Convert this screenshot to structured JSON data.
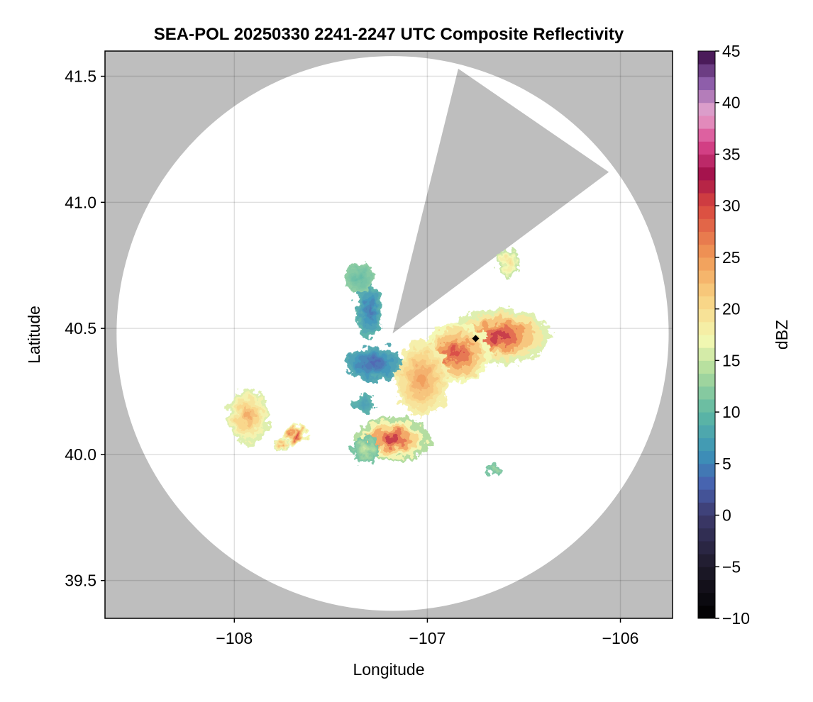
{
  "chart_data": {
    "type": "heatmap",
    "title": "SEA-POL 20250330 2241-2247 UTC Composite Reflectivity",
    "xlabel": "Longitude",
    "ylabel": "Latitude",
    "xlim": [
      -108.67,
      -105.73
    ],
    "ylim": [
      39.35,
      41.6
    ],
    "x_ticks": [
      -108,
      -107,
      -106
    ],
    "x_tick_labels": [
      "−108",
      "−107",
      "−106"
    ],
    "y_ticks": [
      39.5,
      40.0,
      40.5,
      41.0,
      41.5
    ],
    "y_tick_labels": [
      "39.5",
      "40.0",
      "40.5",
      "41.0",
      "41.5"
    ],
    "grid": true,
    "background_color": "#bebebe",
    "coverage_color": "#ffffff",
    "radar_site": {
      "lon": -107.18,
      "lat": 40.48
    },
    "coverage_radius_deg_lat": 1.1,
    "coverage_radius_deg_lon": 1.43,
    "blocked_sector": {
      "vertices": [
        [
          -107.18,
          40.48
        ],
        [
          -106.84,
          41.53
        ],
        [
          -106.06,
          41.12
        ]
      ]
    },
    "colorbar": {
      "label": "dBZ",
      "min": -10,
      "max": 45,
      "ticks": [
        -10,
        -5,
        0,
        5,
        10,
        15,
        20,
        25,
        30,
        35,
        40,
        45
      ],
      "tick_labels": [
        "−10",
        "−5",
        "0",
        "5",
        "10",
        "15",
        "20",
        "25",
        "30",
        "35",
        "40",
        "45"
      ],
      "colormap": "spectral-inverted",
      "stops": [
        {
          "v": -10,
          "c": "#000000"
        },
        {
          "v": -5,
          "c": "#1e1a2a"
        },
        {
          "v": 0,
          "c": "#3d3a6c"
        },
        {
          "v": 3,
          "c": "#4862b0"
        },
        {
          "v": 6,
          "c": "#3b93b8"
        },
        {
          "v": 10,
          "c": "#5fb9a3"
        },
        {
          "v": 14,
          "c": "#b0dc9c"
        },
        {
          "v": 17,
          "c": "#f3f8b2"
        },
        {
          "v": 21,
          "c": "#f9d384"
        },
        {
          "v": 25,
          "c": "#f19a57"
        },
        {
          "v": 30,
          "c": "#d9473f"
        },
        {
          "v": 33,
          "c": "#a3114a"
        },
        {
          "v": 36,
          "c": "#d9458c"
        },
        {
          "v": 39,
          "c": "#e6a6cf"
        },
        {
          "v": 42,
          "c": "#8a5ba8"
        },
        {
          "v": 45,
          "c": "#3a0a45"
        }
      ]
    },
    "echo_cells": [
      {
        "lon": -106.62,
        "lat": 40.47,
        "rx": 0.26,
        "ry": 0.11,
        "core_dbz": 31,
        "edge_dbz": 16
      },
      {
        "lon": -106.85,
        "lat": 40.4,
        "rx": 0.18,
        "ry": 0.12,
        "core_dbz": 30,
        "edge_dbz": 17
      },
      {
        "lon": -107.03,
        "lat": 40.3,
        "rx": 0.14,
        "ry": 0.15,
        "core_dbz": 25,
        "edge_dbz": 18
      },
      {
        "lon": -107.18,
        "lat": 40.06,
        "rx": 0.2,
        "ry": 0.09,
        "core_dbz": 31,
        "edge_dbz": 14
      },
      {
        "lon": -107.32,
        "lat": 40.02,
        "rx": 0.07,
        "ry": 0.05,
        "core_dbz": 15,
        "edge_dbz": 11
      },
      {
        "lon": -107.93,
        "lat": 40.15,
        "rx": 0.11,
        "ry": 0.11,
        "core_dbz": 24,
        "edge_dbz": 16
      },
      {
        "lon": -107.68,
        "lat": 40.08,
        "rx": 0.06,
        "ry": 0.04,
        "core_dbz": 30,
        "edge_dbz": 17
      },
      {
        "lon": -107.76,
        "lat": 40.04,
        "rx": 0.04,
        "ry": 0.03,
        "core_dbz": 24,
        "edge_dbz": 16
      },
      {
        "lon": -107.28,
        "lat": 40.36,
        "rx": 0.15,
        "ry": 0.07,
        "core_dbz": 3,
        "edge_dbz": 8
      },
      {
        "lon": -107.3,
        "lat": 40.57,
        "rx": 0.07,
        "ry": 0.11,
        "core_dbz": 4,
        "edge_dbz": 9
      },
      {
        "lon": -107.35,
        "lat": 40.7,
        "rx": 0.08,
        "ry": 0.06,
        "core_dbz": 10,
        "edge_dbz": 12
      },
      {
        "lon": -107.33,
        "lat": 40.2,
        "rx": 0.05,
        "ry": 0.04,
        "core_dbz": 7,
        "edge_dbz": 9
      },
      {
        "lon": -106.58,
        "lat": 40.76,
        "rx": 0.06,
        "ry": 0.05,
        "core_dbz": 20,
        "edge_dbz": 15
      },
      {
        "lon": -106.65,
        "lat": 39.94,
        "rx": 0.04,
        "ry": 0.02,
        "core_dbz": 13,
        "edge_dbz": 11
      }
    ],
    "marker": {
      "lon": -106.75,
      "lat": 40.46,
      "shape": "diamond",
      "color": "#000000"
    }
  }
}
